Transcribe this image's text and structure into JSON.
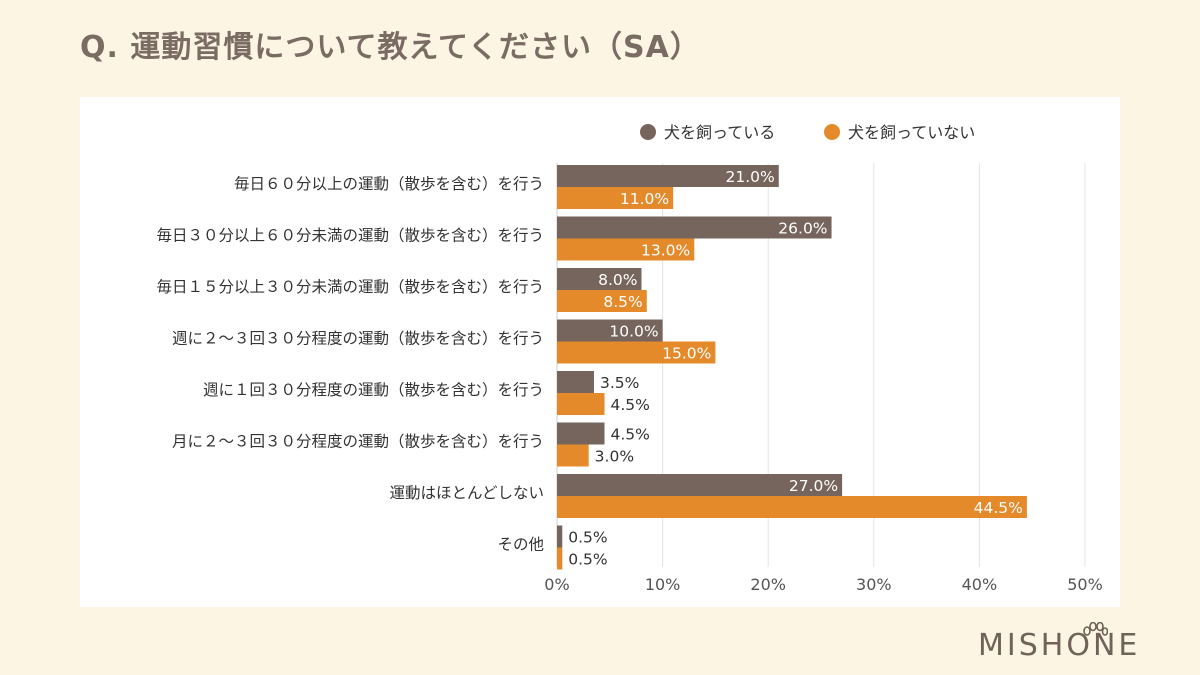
{
  "title": "Q.  運動習慣について教えてください（SA）",
  "brand": "MISHONE",
  "colors": {
    "series1": "#76655d",
    "series2": "#e58a2b",
    "background": "#fdf5e4",
    "panel": "#ffffff"
  },
  "chart_data": {
    "type": "bar",
    "orientation": "horizontal",
    "title": "Q.  運動習慣について教えてください（SA）",
    "categories": [
      "毎日６０分以上の運動（散歩を含む）を行う",
      "毎日３０分以上６０分未満の運動（散歩を含む）を行う",
      "毎日１５分以上３０分未満の運動（散歩を含む）を行う",
      "週に２～３回３０分程度の運動（散歩を含む）を行う",
      "週に１回３０分程度の運動（散歩を含む）を行う",
      "月に２～３回３０分程度の運動（散歩を含む）を行う",
      "運動はほとんどしない",
      "その他"
    ],
    "series": [
      {
        "name": "犬を飼っている",
        "color": "#76655d",
        "values": [
          21.0,
          26.0,
          8.0,
          10.0,
          3.5,
          4.5,
          27.0,
          0.5
        ],
        "labels": [
          "21.0%",
          "26.0%",
          "8.0%",
          "10.0%",
          "3.5%",
          "4.5%",
          "27.0%",
          "0.5%"
        ]
      },
      {
        "name": "犬を飼っていない",
        "color": "#e58a2b",
        "values": [
          11.0,
          13.0,
          8.5,
          15.0,
          4.5,
          3.0,
          44.5,
          0.5
        ],
        "labels": [
          "11.0%",
          "13.0%",
          "8.5%",
          "15.0%",
          "4.5%",
          "3.0%",
          "44.5%",
          "0.5%"
        ]
      }
    ],
    "xlim": [
      0,
      50
    ],
    "xticks": [
      0,
      10,
      20,
      30,
      40,
      50
    ],
    "xtick_labels": [
      "0%",
      "10%",
      "20%",
      "30%",
      "40%",
      "50%"
    ],
    "grid": true,
    "legend": "top-right"
  }
}
